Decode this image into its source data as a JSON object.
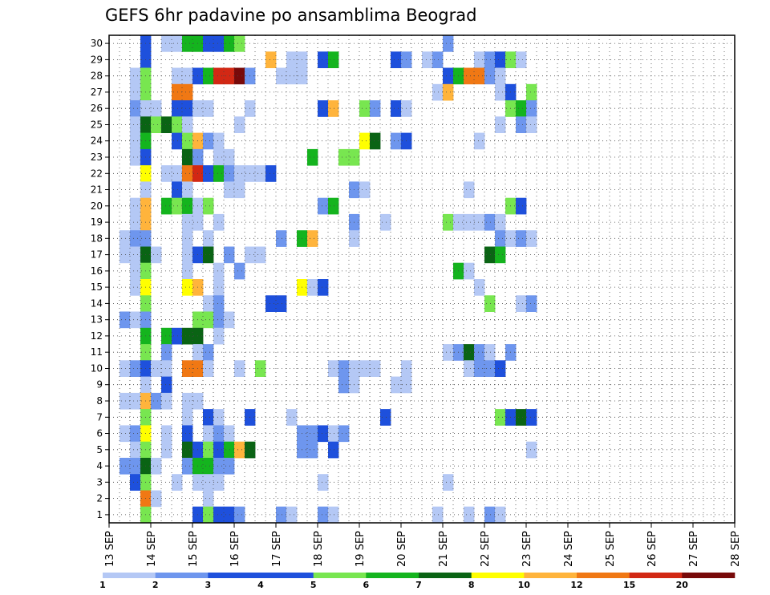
{
  "chart_data": {
    "type": "heatmap",
    "title": "GEFS 6hr padavine po ansamblima Beograd",
    "x_tick_labels": [
      "13 SEP",
      "14 SEP",
      "15 SEP",
      "16 SEP",
      "17 SEP",
      "18 SEP",
      "19 SEP",
      "20 SEP",
      "21 SEP",
      "22 SEP",
      "23 SEP",
      "24 SEP",
      "25 SEP",
      "26 SEP",
      "27 SEP",
      "28 SEP"
    ],
    "y_tick_labels": [
      "1",
      "2",
      "3",
      "4",
      "5",
      "6",
      "7",
      "8",
      "9",
      "10",
      "11",
      "12",
      "13",
      "14",
      "15",
      "16",
      "17",
      "18",
      "19",
      "20",
      "21",
      "22",
      "23",
      "24",
      "25",
      "26",
      "27",
      "28",
      "29",
      "30"
    ],
    "time_steps_per_day": 4,
    "members": 30,
    "grid": true,
    "legend": {
      "placement": "bottom",
      "tick_labels": [
        "1",
        "2",
        "3",
        "4",
        "5",
        "6",
        "7",
        "8",
        "10",
        "12",
        "15",
        "20"
      ],
      "colors": [
        "#b4c8f5",
        "#6e96ee",
        "#1e50dc",
        "#1e50dc",
        "#78e650",
        "#14b41e",
        "#0a6414",
        "#ffff00",
        "#ffb43c",
        "#f07814",
        "#d22814",
        "#780a0a"
      ]
    },
    "cells": [
      [
        30,
        1,
        3
      ],
      [
        30,
        3,
        1
      ],
      [
        30,
        4,
        1
      ],
      [
        30,
        5,
        6
      ],
      [
        30,
        6,
        6
      ],
      [
        30,
        7,
        3
      ],
      [
        30,
        8,
        3
      ],
      [
        30,
        9,
        6
      ],
      [
        30,
        10,
        5
      ],
      [
        30,
        30,
        2
      ],
      [
        29,
        1,
        3
      ],
      [
        29,
        13,
        9
      ],
      [
        29,
        15,
        1
      ],
      [
        29,
        16,
        1
      ],
      [
        29,
        18,
        3
      ],
      [
        29,
        19,
        6
      ],
      [
        29,
        25,
        3
      ],
      [
        29,
        26,
        2
      ],
      [
        29,
        28,
        1
      ],
      [
        29,
        29,
        2
      ],
      [
        29,
        33,
        1
      ],
      [
        29,
        34,
        2
      ],
      [
        29,
        35,
        3
      ],
      [
        29,
        36,
        5
      ],
      [
        29,
        37,
        1
      ],
      [
        28,
        0,
        1
      ],
      [
        28,
        1,
        5
      ],
      [
        28,
        4,
        1
      ],
      [
        28,
        5,
        1
      ],
      [
        28,
        6,
        3
      ],
      [
        28,
        7,
        6
      ],
      [
        28,
        8,
        11
      ],
      [
        28,
        9,
        11
      ],
      [
        28,
        10,
        12
      ],
      [
        28,
        11,
        2
      ],
      [
        28,
        14,
        1
      ],
      [
        28,
        15,
        1
      ],
      [
        28,
        16,
        1
      ],
      [
        28,
        30,
        3
      ],
      [
        28,
        31,
        6
      ],
      [
        28,
        32,
        10
      ],
      [
        28,
        33,
        10
      ],
      [
        28,
        34,
        2
      ],
      [
        28,
        35,
        1
      ],
      [
        27,
        0,
        1
      ],
      [
        27,
        1,
        5
      ],
      [
        27,
        4,
        10
      ],
      [
        27,
        5,
        10
      ],
      [
        27,
        29,
        1
      ],
      [
        27,
        30,
        9
      ],
      [
        27,
        35,
        1
      ],
      [
        27,
        36,
        3
      ],
      [
        27,
        38,
        5
      ],
      [
        26,
        0,
        2
      ],
      [
        26,
        1,
        1
      ],
      [
        26,
        2,
        1
      ],
      [
        26,
        4,
        3
      ],
      [
        26,
        5,
        3
      ],
      [
        26,
        6,
        1
      ],
      [
        26,
        7,
        1
      ],
      [
        26,
        11,
        1
      ],
      [
        26,
        18,
        3
      ],
      [
        26,
        19,
        9
      ],
      [
        26,
        22,
        5
      ],
      [
        26,
        23,
        2
      ],
      [
        26,
        25,
        3
      ],
      [
        26,
        26,
        1
      ],
      [
        26,
        36,
        5
      ],
      [
        26,
        37,
        6
      ],
      [
        26,
        38,
        2
      ],
      [
        25,
        0,
        1
      ],
      [
        25,
        1,
        7
      ],
      [
        25,
        2,
        5
      ],
      [
        25,
        3,
        7
      ],
      [
        25,
        4,
        5
      ],
      [
        25,
        5,
        1
      ],
      [
        25,
        10,
        1
      ],
      [
        25,
        35,
        1
      ],
      [
        25,
        37,
        2
      ],
      [
        25,
        38,
        1
      ],
      [
        24,
        0,
        1
      ],
      [
        24,
        1,
        6
      ],
      [
        24,
        4,
        3
      ],
      [
        24,
        5,
        5
      ],
      [
        24,
        6,
        9
      ],
      [
        24,
        7,
        2
      ],
      [
        24,
        8,
        1
      ],
      [
        24,
        22,
        8
      ],
      [
        24,
        23,
        7
      ],
      [
        24,
        25,
        2
      ],
      [
        24,
        26,
        3
      ],
      [
        24,
        33,
        1
      ],
      [
        23,
        0,
        1
      ],
      [
        23,
        1,
        3
      ],
      [
        23,
        5,
        7
      ],
      [
        23,
        6,
        2
      ],
      [
        23,
        8,
        1
      ],
      [
        23,
        9,
        1
      ],
      [
        23,
        17,
        6
      ],
      [
        23,
        20,
        5
      ],
      [
        23,
        21,
        5
      ],
      [
        22,
        1,
        8
      ],
      [
        22,
        3,
        1
      ],
      [
        22,
        4,
        1
      ],
      [
        22,
        5,
        10
      ],
      [
        22,
        6,
        11
      ],
      [
        22,
        7,
        3
      ],
      [
        22,
        8,
        6
      ],
      [
        22,
        9,
        2
      ],
      [
        22,
        10,
        1
      ],
      [
        22,
        11,
        1
      ],
      [
        22,
        12,
        1
      ],
      [
        22,
        13,
        3
      ],
      [
        21,
        1,
        1
      ],
      [
        21,
        4,
        3
      ],
      [
        21,
        5,
        1
      ],
      [
        21,
        9,
        1
      ],
      [
        21,
        10,
        1
      ],
      [
        21,
        21,
        2
      ],
      [
        21,
        22,
        1
      ],
      [
        21,
        32,
        1
      ],
      [
        20,
        0,
        1
      ],
      [
        20,
        1,
        9
      ],
      [
        20,
        3,
        6
      ],
      [
        20,
        4,
        5
      ],
      [
        20,
        5,
        6
      ],
      [
        20,
        6,
        1
      ],
      [
        20,
        7,
        5
      ],
      [
        20,
        18,
        2
      ],
      [
        20,
        19,
        6
      ],
      [
        20,
        36,
        5
      ],
      [
        20,
        37,
        3
      ],
      [
        19,
        0,
        1
      ],
      [
        19,
        1,
        9
      ],
      [
        19,
        5,
        1
      ],
      [
        19,
        6,
        1
      ],
      [
        19,
        8,
        1
      ],
      [
        19,
        21,
        2
      ],
      [
        19,
        24,
        1
      ],
      [
        19,
        30,
        5
      ],
      [
        19,
        31,
        1
      ],
      [
        19,
        32,
        1
      ],
      [
        19,
        33,
        1
      ],
      [
        19,
        34,
        2
      ],
      [
        19,
        35,
        1
      ],
      [
        18,
        -1,
        1
      ],
      [
        18,
        0,
        2
      ],
      [
        18,
        1,
        2
      ],
      [
        18,
        5,
        1
      ],
      [
        18,
        7,
        1
      ],
      [
        18,
        14,
        2
      ],
      [
        18,
        16,
        6
      ],
      [
        18,
        17,
        9
      ],
      [
        18,
        21,
        1
      ],
      [
        18,
        35,
        2
      ],
      [
        18,
        36,
        1
      ],
      [
        18,
        37,
        2
      ],
      [
        18,
        38,
        1
      ],
      [
        17,
        -1,
        1
      ],
      [
        17,
        0,
        1
      ],
      [
        17,
        1,
        7
      ],
      [
        17,
        2,
        1
      ],
      [
        17,
        5,
        1
      ],
      [
        17,
        6,
        3
      ],
      [
        17,
        7,
        7
      ],
      [
        17,
        9,
        2
      ],
      [
        17,
        11,
        1
      ],
      [
        17,
        12,
        1
      ],
      [
        17,
        34,
        7
      ],
      [
        17,
        35,
        6
      ],
      [
        16,
        0,
        1
      ],
      [
        16,
        1,
        5
      ],
      [
        16,
        5,
        1
      ],
      [
        16,
        8,
        1
      ],
      [
        16,
        10,
        2
      ],
      [
        16,
        31,
        6
      ],
      [
        16,
        32,
        1
      ],
      [
        15,
        0,
        1
      ],
      [
        15,
        1,
        8
      ],
      [
        15,
        5,
        8
      ],
      [
        15,
        6,
        9
      ],
      [
        15,
        8,
        1
      ],
      [
        15,
        16,
        8
      ],
      [
        15,
        17,
        1
      ],
      [
        15,
        18,
        3
      ],
      [
        15,
        33,
        1
      ],
      [
        14,
        1,
        5
      ],
      [
        14,
        7,
        1
      ],
      [
        14,
        8,
        2
      ],
      [
        14,
        13,
        3
      ],
      [
        14,
        14,
        3
      ],
      [
        14,
        34,
        5
      ],
      [
        14,
        37,
        1
      ],
      [
        14,
        38,
        2
      ],
      [
        13,
        -1,
        2
      ],
      [
        13,
        0,
        1
      ],
      [
        13,
        1,
        2
      ],
      [
        13,
        6,
        5
      ],
      [
        13,
        7,
        5
      ],
      [
        13,
        8,
        2
      ],
      [
        13,
        9,
        1
      ],
      [
        12,
        1,
        6
      ],
      [
        12,
        3,
        6
      ],
      [
        12,
        4,
        3
      ],
      [
        12,
        5,
        7
      ],
      [
        12,
        6,
        7
      ],
      [
        12,
        8,
        1
      ],
      [
        11,
        1,
        5
      ],
      [
        11,
        3,
        2
      ],
      [
        11,
        6,
        1
      ],
      [
        11,
        7,
        2
      ],
      [
        11,
        30,
        1
      ],
      [
        11,
        31,
        2
      ],
      [
        11,
        32,
        7
      ],
      [
        11,
        33,
        2
      ],
      [
        11,
        34,
        1
      ],
      [
        11,
        36,
        2
      ],
      [
        10,
        -1,
        1
      ],
      [
        10,
        0,
        2
      ],
      [
        10,
        1,
        3
      ],
      [
        10,
        2,
        1
      ],
      [
        10,
        3,
        1
      ],
      [
        10,
        5,
        10
      ],
      [
        10,
        6,
        10
      ],
      [
        10,
        7,
        1
      ],
      [
        10,
        10,
        1
      ],
      [
        10,
        12,
        5
      ],
      [
        10,
        19,
        1
      ],
      [
        10,
        20,
        2
      ],
      [
        10,
        21,
        1
      ],
      [
        10,
        22,
        1
      ],
      [
        10,
        23,
        1
      ],
      [
        10,
        26,
        1
      ],
      [
        10,
        32,
        1
      ],
      [
        10,
        33,
        2
      ],
      [
        10,
        34,
        2
      ],
      [
        10,
        35,
        3
      ],
      [
        9,
        1,
        1
      ],
      [
        9,
        3,
        3
      ],
      [
        9,
        20,
        2
      ],
      [
        9,
        21,
        1
      ],
      [
        9,
        25,
        1
      ],
      [
        9,
        26,
        1
      ],
      [
        8,
        -1,
        1
      ],
      [
        8,
        0,
        1
      ],
      [
        8,
        1,
        9
      ],
      [
        8,
        2,
        2
      ],
      [
        8,
        3,
        1
      ],
      [
        8,
        5,
        1
      ],
      [
        8,
        6,
        1
      ],
      [
        7,
        1,
        5
      ],
      [
        7,
        5,
        1
      ],
      [
        7,
        7,
        3
      ],
      [
        7,
        8,
        1
      ],
      [
        7,
        11,
        3
      ],
      [
        7,
        15,
        1
      ],
      [
        7,
        24,
        3
      ],
      [
        7,
        35,
        5
      ],
      [
        7,
        36,
        3
      ],
      [
        7,
        37,
        7
      ],
      [
        7,
        38,
        3
      ],
      [
        6,
        -1,
        1
      ],
      [
        6,
        0,
        2
      ],
      [
        6,
        1,
        8
      ],
      [
        6,
        3,
        1
      ],
      [
        6,
        5,
        3
      ],
      [
        6,
        7,
        1
      ],
      [
        6,
        8,
        2
      ],
      [
        6,
        9,
        1
      ],
      [
        6,
        16,
        2
      ],
      [
        6,
        17,
        2
      ],
      [
        6,
        18,
        3
      ],
      [
        6,
        19,
        1
      ],
      [
        6,
        20,
        2
      ],
      [
        5,
        0,
        1
      ],
      [
        5,
        1,
        5
      ],
      [
        5,
        3,
        1
      ],
      [
        5,
        5,
        7
      ],
      [
        5,
        6,
        3
      ],
      [
        5,
        7,
        5
      ],
      [
        5,
        8,
        3
      ],
      [
        5,
        9,
        6
      ],
      [
        5,
        10,
        9
      ],
      [
        5,
        11,
        7
      ],
      [
        5,
        16,
        2
      ],
      [
        5,
        17,
        2
      ],
      [
        5,
        19,
        3
      ],
      [
        5,
        38,
        1
      ],
      [
        4,
        -1,
        2
      ],
      [
        4,
        0,
        2
      ],
      [
        4,
        1,
        7
      ],
      [
        4,
        2,
        1
      ],
      [
        4,
        5,
        2
      ],
      [
        4,
        6,
        6
      ],
      [
        4,
        7,
        6
      ],
      [
        4,
        8,
        2
      ],
      [
        4,
        9,
        2
      ],
      [
        3,
        0,
        3
      ],
      [
        3,
        1,
        5
      ],
      [
        3,
        4,
        1
      ],
      [
        3,
        6,
        1
      ],
      [
        3,
        7,
        1
      ],
      [
        3,
        8,
        1
      ],
      [
        3,
        18,
        1
      ],
      [
        3,
        30,
        1
      ],
      [
        2,
        1,
        10
      ],
      [
        2,
        2,
        1
      ],
      [
        2,
        7,
        1
      ],
      [
        1,
        1,
        5
      ],
      [
        1,
        6,
        3
      ],
      [
        1,
        7,
        5
      ],
      [
        1,
        8,
        3
      ],
      [
        1,
        9,
        3
      ],
      [
        1,
        10,
        2
      ],
      [
        1,
        14,
        2
      ],
      [
        1,
        15,
        1
      ],
      [
        1,
        18,
        2
      ],
      [
        1,
        19,
        1
      ],
      [
        1,
        29,
        1
      ],
      [
        1,
        32,
        1
      ],
      [
        1,
        34,
        2
      ],
      [
        1,
        35,
        1
      ]
    ]
  }
}
